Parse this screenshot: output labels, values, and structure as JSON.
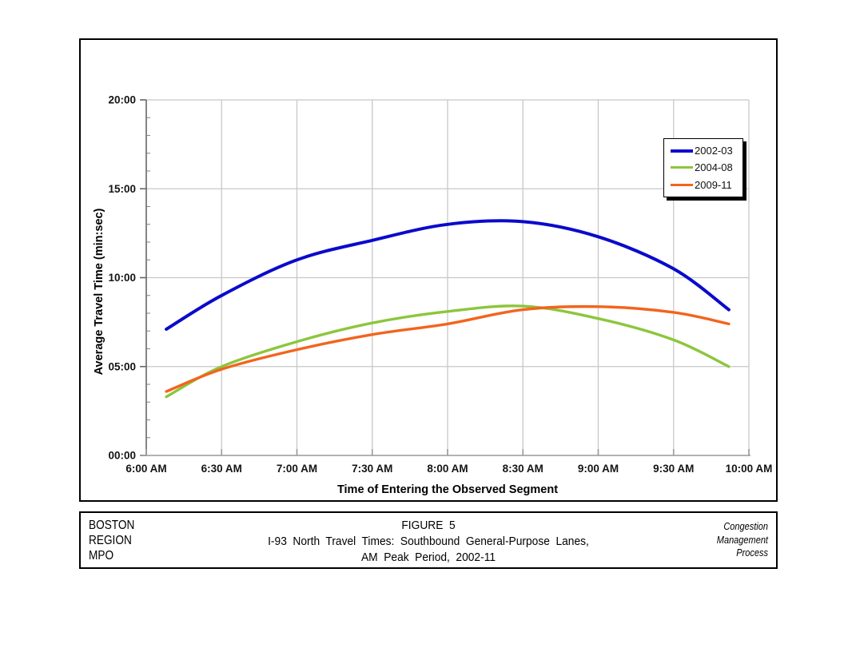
{
  "window": {
    "background": "#FFFFFF"
  },
  "colors": {
    "figure_border": "#000000",
    "grid": "#C8C8C8",
    "y_axis": "#666666",
    "x_axis": "#999999",
    "minor_tick": "#8C8C8C",
    "tick_text": "#141414",
    "legend_shadow": "#000000"
  },
  "chart_data": {
    "type": "line",
    "title": "",
    "xlabel": "Time of Entering the Observed Segment",
    "ylabel": "Average Travel Time (min:sec)",
    "x_tick_labels": [
      "6:00 AM",
      "6:30 AM",
      "7:00 AM",
      "7:30 AM",
      "8:00 AM",
      "8:30 AM",
      "9:00 AM",
      "9:30 AM",
      "10:00 AM"
    ],
    "x_tick_minutes_after_6am": [
      0,
      30,
      60,
      90,
      120,
      150,
      180,
      210,
      240
    ],
    "y_tick_labels": [
      "00:00",
      "05:00",
      "10:00",
      "15:00",
      "20:00"
    ],
    "y_tick_minutes": [
      0,
      5,
      10,
      15,
      20
    ],
    "ylim_minutes": [
      0,
      20
    ],
    "xlim_minutes_after_6am": [
      0,
      240
    ],
    "y_minor_tick_step_minutes": 1,
    "grid": true,
    "legend_position": "upper-right",
    "sample_times": [
      "6:08 AM",
      "6:30 AM",
      "7:00 AM",
      "7:30 AM",
      "8:00 AM",
      "8:30 AM",
      "9:00 AM",
      "9:30 AM",
      "9:52 AM"
    ],
    "sample_t_minutes": [
      8,
      30,
      60,
      90,
      120,
      150,
      180,
      210,
      232
    ],
    "series": [
      {
        "name": "2002-03",
        "color": "#0A0ACC",
        "stroke_width": 4,
        "values_minutes": [
          7.1,
          9.0,
          11.0,
          12.1,
          13.0,
          13.15,
          12.3,
          10.5,
          8.2
        ],
        "values_mmss": [
          "7:06",
          "9:00",
          "11:00",
          "12:06",
          "13:00",
          "13:09",
          "12:18",
          "10:30",
          "8:12"
        ]
      },
      {
        "name": "2004-08",
        "color": "#8CC63C",
        "stroke_width": 3.4,
        "values_minutes": [
          3.3,
          5.0,
          6.4,
          7.45,
          8.1,
          8.4,
          7.7,
          6.5,
          5.0
        ],
        "values_mmss": [
          "3:18",
          "5:00",
          "6:24",
          "7:27",
          "8:06",
          "8:24",
          "7:42",
          "6:30",
          "5:00"
        ]
      },
      {
        "name": "2009-11",
        "color": "#F2641E",
        "stroke_width": 3.4,
        "values_minutes": [
          3.6,
          4.85,
          5.95,
          6.8,
          7.4,
          8.2,
          8.37,
          8.05,
          7.4
        ],
        "values_mmss": [
          "3:36",
          "4:51",
          "5:57",
          "6:48",
          "7:24",
          "8:12",
          "8:22",
          "8:03",
          "7:24"
        ]
      }
    ]
  },
  "caption": {
    "left_lines": [
      "BOSTON",
      "REGION",
      "MPO"
    ],
    "center_lines": [
      "FIGURE 5",
      "I-93 North Travel Times: Southbound General-Purpose Lanes,",
      "AM Peak Period, 2002-11"
    ],
    "right_lines": [
      "Congestion",
      "Management",
      "Process"
    ]
  }
}
